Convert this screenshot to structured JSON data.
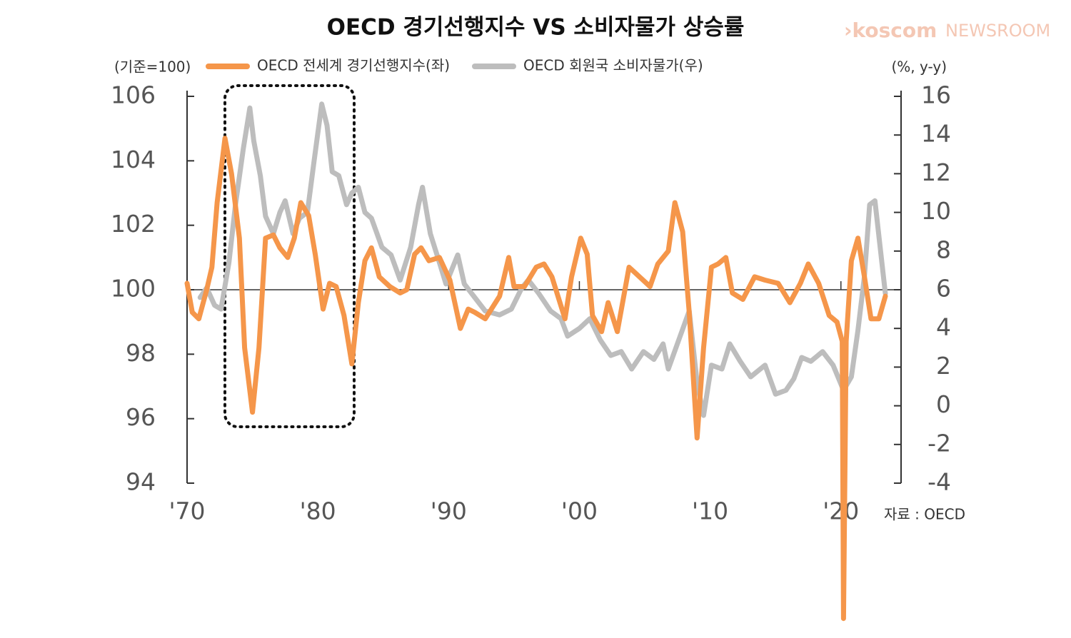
{
  "chart_data": {
    "type": "line",
    "title": "OECD 경기선행지수 VS 소비자물가 상승률",
    "logo": {
      "brand": "›koscom",
      "section": "NEWSROOM"
    },
    "y_label": "(기준=100)",
    "y2_label": "(%, y-y)",
    "source": "자료 : OECD",
    "xlim": [
      1970,
      2024.6
    ],
    "xticks": [
      {
        "value": 1970,
        "label": "'70"
      },
      {
        "value": 1980,
        "label": "'80"
      },
      {
        "value": 1990,
        "label": "'90"
      },
      {
        "value": 2000,
        "label": "'00"
      },
      {
        "value": 2010,
        "label": "'10"
      },
      {
        "value": 2020,
        "label": "'20"
      }
    ],
    "ylim": [
      94,
      106
    ],
    "yticks": [
      94,
      96,
      98,
      100,
      102,
      104,
      106
    ],
    "y2lim": [
      -4,
      16
    ],
    "y2ticks": [
      -4,
      -2,
      0,
      2,
      4,
      6,
      8,
      10,
      12,
      14,
      16
    ],
    "reference_line": 100,
    "series": [
      {
        "name": "OECD 전세계 경기선행지수(좌)",
        "color": "#f5964a",
        "x": [
          1970.0,
          1970.4,
          1970.9,
          1971.5,
          1971.9,
          1972.3,
          1972.9,
          1973.4,
          1974.0,
          1974.4,
          1975.0,
          1975.5,
          1976.0,
          1976.6,
          1977.1,
          1977.7,
          1978.2,
          1978.7,
          1979.3,
          1979.8,
          1980.4,
          1980.9,
          1981.4,
          1982.0,
          1982.6,
          1983.1,
          1983.6,
          1984.1,
          1984.7,
          1985.5,
          1986.3,
          1986.8,
          1987.4,
          1987.9,
          1988.5,
          1989.3,
          1990.1,
          1990.9,
          1991.5,
          1992.0,
          1992.8,
          1993.9,
          1994.6,
          1995.0,
          1995.8,
          1996.7,
          1997.3,
          1997.9,
          1998.9,
          1999.4,
          2000.1,
          2000.6,
          2001.0,
          2001.7,
          2002.2,
          2002.9,
          2003.8,
          2004.6,
          2005.4,
          2006.0,
          2006.8,
          2007.3,
          2007.9,
          2008.4,
          2009.0,
          2009.5,
          2010.1,
          2010.6,
          2011.2,
          2011.7,
          2012.5,
          2013.4,
          2014.2,
          2015.2,
          2016.1,
          2016.9,
          2017.5,
          2018.3,
          2019.1,
          2019.7,
          2020.1,
          2020.2,
          2020.4,
          2020.8,
          2021.3,
          2021.8,
          2022.3,
          2022.9,
          2023.4
        ],
        "values": [
          100.2,
          99.3,
          99.1,
          100.0,
          100.7,
          102.7,
          104.7,
          103.6,
          101.6,
          98.2,
          96.2,
          98.2,
          101.6,
          101.7,
          101.3,
          101.0,
          101.6,
          102.7,
          102.3,
          101.1,
          99.4,
          100.2,
          100.1,
          99.2,
          97.7,
          99.6,
          100.9,
          101.3,
          100.4,
          100.1,
          99.9,
          100.0,
          101.1,
          101.3,
          100.9,
          101.0,
          100.3,
          98.8,
          99.4,
          99.3,
          99.1,
          99.8,
          101.0,
          100.1,
          100.1,
          100.7,
          100.8,
          100.4,
          99.1,
          100.4,
          101.6,
          101.1,
          99.2,
          98.7,
          99.6,
          98.7,
          100.7,
          100.4,
          100.1,
          100.8,
          101.2,
          102.7,
          101.8,
          99.3,
          95.4,
          98.2,
          100.7,
          100.8,
          101.0,
          99.9,
          99.7,
          100.4,
          100.3,
          100.2,
          99.6,
          100.2,
          100.8,
          100.2,
          99.2,
          99.0,
          98.4,
          89.8,
          98.4,
          100.9,
          101.6,
          100.4,
          99.1,
          99.1,
          99.8
        ]
      },
      {
        "name": "OECD 회원국 소비자물가(우)",
        "color": "#bdbdbd",
        "axis": "y2",
        "x": [
          1971.0,
          1971.5,
          1972.1,
          1972.6,
          1973.2,
          1973.7,
          1974.3,
          1974.8,
          1975.1,
          1975.6,
          1976.0,
          1976.6,
          1977.1,
          1977.5,
          1978.1,
          1978.6,
          1979.2,
          1979.7,
          1980.3,
          1980.7,
          1981.1,
          1981.6,
          1982.2,
          1982.6,
          1983.1,
          1983.6,
          1984.1,
          1984.9,
          1985.6,
          1986.3,
          1987.1,
          1987.7,
          1988.0,
          1988.6,
          1989.3,
          1989.8,
          1990.7,
          1991.2,
          1992.0,
          1992.8,
          1993.9,
          1994.8,
          1995.6,
          1996.1,
          1996.9,
          1997.8,
          1998.6,
          1999.1,
          2000.0,
          2000.8,
          2001.6,
          2002.4,
          2003.2,
          2004.0,
          2004.9,
          2005.7,
          2006.4,
          2006.8,
          2007.6,
          2008.4,
          2009.0,
          2009.5,
          2010.1,
          2010.9,
          2011.5,
          2012.3,
          2013.1,
          2014.2,
          2015.0,
          2015.8,
          2016.4,
          2017.0,
          2017.7,
          2018.6,
          2019.4,
          2020.2,
          2020.8,
          2021.3,
          2021.8,
          2022.2,
          2022.6,
          2023.0,
          2023.4
        ],
        "values": [
          5.6,
          6.1,
          5.2,
          5.0,
          7.4,
          10.4,
          13.3,
          15.4,
          13.7,
          11.9,
          9.8,
          8.9,
          10.0,
          10.6,
          8.9,
          9.7,
          10.0,
          12.6,
          15.6,
          14.5,
          12.1,
          11.9,
          10.4,
          11.0,
          11.3,
          10.0,
          9.7,
          8.2,
          7.8,
          6.5,
          8.2,
          10.4,
          11.3,
          8.9,
          7.4,
          6.3,
          7.8,
          6.3,
          5.6,
          4.9,
          4.7,
          5.0,
          6.1,
          6.5,
          5.8,
          4.9,
          4.5,
          3.6,
          4.0,
          4.5,
          3.4,
          2.6,
          2.8,
          1.9,
          2.8,
          2.4,
          3.2,
          1.9,
          3.4,
          4.9,
          1.2,
          -0.5,
          2.1,
          1.9,
          3.2,
          2.3,
          1.5,
          2.1,
          0.6,
          0.8,
          1.4,
          2.5,
          2.3,
          2.8,
          2.1,
          0.8,
          1.5,
          3.9,
          6.7,
          10.4,
          10.6,
          8.2,
          5.8
        ]
      }
    ]
  }
}
